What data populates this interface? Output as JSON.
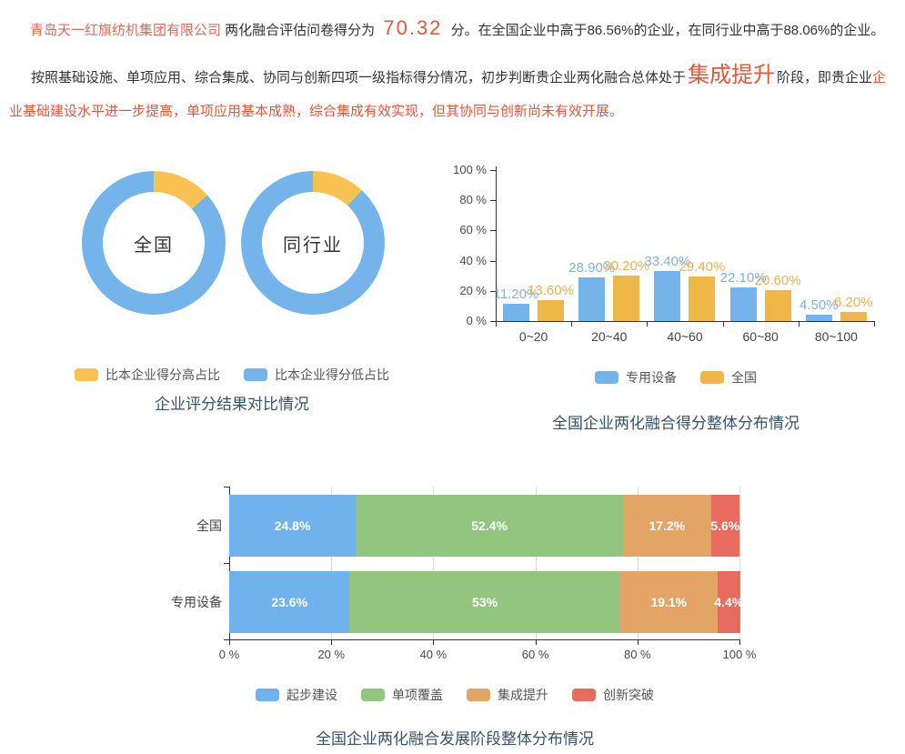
{
  "intro": {
    "company": "青岛天一红旗纺机集团有限公司",
    "score_label": " 两化融合评估问卷得分为 ",
    "score": "70.32",
    "score_detail": " 分。在全国企业中高于86.56%的企业，在同行业中高于88.06%的企业。",
    "stage_prefix": "按照基础设施、单项应用、综合集成、协同与创新四项一级指标得分情况，初步判断贵企业两化融合总体处于",
    "stage": "集成提升",
    "stage_mid": "阶段，即贵企业",
    "stage_detail": "企业基础建设水平进一步提高，单项应用基本成熟，综合集成有效实现，但其协同与创新尚未有效开展。"
  },
  "chart_data": [
    {
      "type": "pie",
      "title": "企业评分结果对比情况",
      "legend": [
        {
          "label": "比本企业得分高占比",
          "color": "#f7c251"
        },
        {
          "label": "比本企业得分低占比",
          "color": "#74b4ea"
        }
      ],
      "donuts": [
        {
          "label": "全国",
          "slices": [
            {
              "name": "比本企业得分高占比",
              "value": 13.44
            },
            {
              "name": "比本企业得分低占比",
              "value": 86.56
            }
          ]
        },
        {
          "label": "同行业",
          "slices": [
            {
              "name": "比本企业得分高占比",
              "value": 11.94
            },
            {
              "name": "比本企业得分低占比",
              "value": 88.06
            }
          ]
        }
      ]
    },
    {
      "type": "bar",
      "title": "全国企业两化融合得分整体分布情况",
      "categories": [
        "0~20",
        "20~40",
        "40~60",
        "60~80",
        "80~100"
      ],
      "series": [
        {
          "name": "专用设备",
          "color": "#74b4ea",
          "label_color": "#7fb2df",
          "values": [
            11.2,
            28.9,
            33.4,
            22.1,
            4.5
          ],
          "labels": [
            "11.20%",
            "28.90%",
            "33.40%",
            "22.10%",
            "4.50%"
          ]
        },
        {
          "name": "全国",
          "color": "#efb648",
          "label_color": "#f0af52",
          "values": [
            13.6,
            30.2,
            29.4,
            20.6,
            6.2
          ],
          "labels": [
            "13.60%",
            "30.20%",
            "29.40%",
            "20.60%",
            "6.20%"
          ]
        }
      ],
      "ylim": [
        0,
        100
      ],
      "yticks": [
        "0 %",
        "20 %",
        "40 %",
        "60 %",
        "80 %",
        "100 %"
      ]
    },
    {
      "type": "stacked-bar",
      "title": "全国企业两化融合发展阶段整体分布情况",
      "categories": [
        "全国",
        "专用设备"
      ],
      "series": [
        {
          "name": "起步建设",
          "color": "#6fb2ee",
          "values": [
            24.8,
            23.6
          ],
          "labels": [
            "24.8%",
            "23.6%"
          ]
        },
        {
          "name": "单项覆盖",
          "color": "#92c57e",
          "values": [
            52.4,
            53
          ],
          "labels": [
            "52.4%",
            "53%"
          ]
        },
        {
          "name": "集成提升",
          "color": "#e2a566",
          "values": [
            17.2,
            19.1
          ],
          "labels": [
            "17.2%",
            "19.1%"
          ]
        },
        {
          "name": "创新突破",
          "color": "#e96a5f",
          "values": [
            5.6,
            4.4
          ],
          "labels": [
            "5.6%",
            "4.4%"
          ]
        }
      ],
      "xlim": [
        0,
        100
      ],
      "xticks": [
        "0 %",
        "20 %",
        "40 %",
        "60 %",
        "80 %",
        "100 %"
      ]
    }
  ]
}
